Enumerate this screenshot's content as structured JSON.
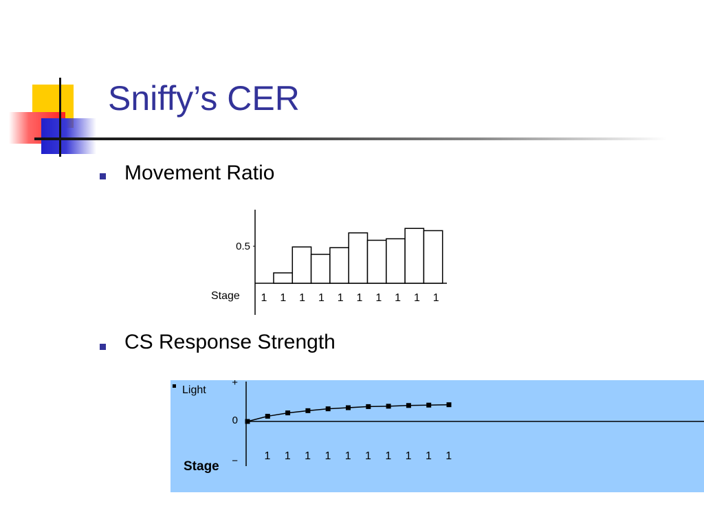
{
  "slide": {
    "title": "Sniffy’s CER",
    "bullets": [
      "Movement Ratio",
      "CS Response Strength"
    ]
  },
  "colors": {
    "title": "#333399",
    "bullet": "#333399",
    "accent_yellow": "#ffcc00",
    "accent_red": "#ff3333",
    "accent_blue": "#2222cc",
    "chart2_background": "#99ccff"
  },
  "chart_data": [
    {
      "type": "bar",
      "categories": [
        "1",
        "1",
        "1",
        "1",
        "1",
        "1",
        "1",
        "1",
        "1"
      ],
      "values": [
        0.14,
        0.49,
        0.39,
        0.48,
        0.68,
        0.58,
        0.6,
        0.74,
        0.71
      ],
      "ytick_labels": [
        "0.5"
      ],
      "ytick_values": [
        0.5
      ],
      "row_label": "Stage",
      "stage_labels": [
        "1",
        "1",
        "1",
        "1",
        "1",
        "1",
        "1",
        "1",
        "1",
        "1"
      ],
      "ylim": [
        0,
        0.9
      ]
    },
    {
      "type": "line",
      "series": [
        {
          "name": "Light",
          "x": [
            0,
            1,
            2,
            3,
            4,
            5,
            6,
            7,
            8,
            9,
            10
          ],
          "values": [
            0.0,
            0.14,
            0.23,
            0.29,
            0.34,
            0.37,
            0.4,
            0.41,
            0.43,
            0.44,
            0.45
          ]
        }
      ],
      "ytick_labels": [
        "+",
        "0",
        "−"
      ],
      "row_label": "Stage",
      "stage_labels": [
        "1",
        "1",
        "1",
        "1",
        "1",
        "1",
        "1",
        "1",
        "1",
        "1"
      ],
      "ylim": [
        -1,
        1
      ]
    }
  ]
}
